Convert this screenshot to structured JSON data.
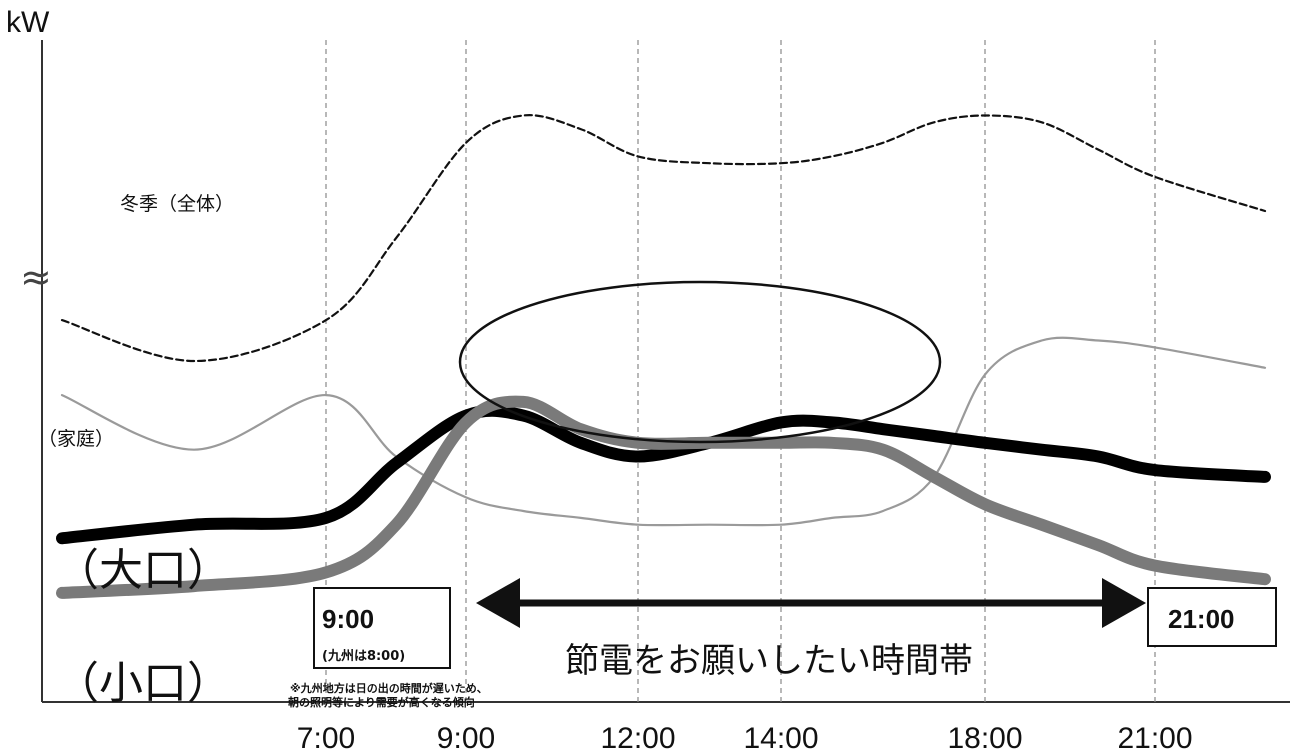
{
  "chart_data": {
    "type": "line",
    "ylabel": "kW",
    "x_ticks": [
      "7:00",
      "9:00",
      "12:00",
      "14:00",
      "18:00",
      "21:00"
    ],
    "grid": "vertical dashed lines at tick times",
    "axis_break_symbol": "≈",
    "series": [
      {
        "name": "冬季（全体）",
        "style": "dashed",
        "color": "#111111",
        "x": [
          5,
          6,
          7,
          8,
          9,
          10,
          11,
          12,
          13,
          14,
          15,
          16,
          17,
          18,
          19,
          20,
          21,
          22
        ],
        "values": [
          0.56,
          0.5,
          0.56,
          0.68,
          0.82,
          0.86,
          0.84,
          0.8,
          0.79,
          0.79,
          0.8,
          0.82,
          0.85,
          0.86,
          0.85,
          0.81,
          0.77,
          0.72
        ]
      },
      {
        "name": "（家庭）",
        "style": "thin",
        "color": "#9a9a9a",
        "x": [
          5,
          6,
          7,
          8,
          9,
          10,
          11,
          12,
          13,
          14,
          15,
          16,
          17,
          18,
          19,
          20,
          21,
          22
        ],
        "values": [
          0.45,
          0.37,
          0.45,
          0.36,
          0.3,
          0.28,
          0.27,
          0.26,
          0.26,
          0.26,
          0.27,
          0.28,
          0.33,
          0.48,
          0.53,
          0.53,
          0.52,
          0.49
        ]
      },
      {
        "name": "（大口）",
        "style": "thick",
        "color": "#000000",
        "x": [
          5,
          6,
          7,
          8,
          9,
          10,
          11,
          12,
          13,
          14,
          15,
          16,
          17,
          18,
          19,
          20,
          21,
          22
        ],
        "values": [
          0.24,
          0.26,
          0.27,
          0.35,
          0.42,
          0.42,
          0.38,
          0.36,
          0.38,
          0.41,
          0.41,
          0.4,
          0.39,
          0.38,
          0.37,
          0.36,
          0.34,
          0.33
        ]
      },
      {
        "name": "（小口）",
        "style": "thick",
        "color": "#7a7a7a",
        "x": [
          5,
          6,
          7,
          8,
          9,
          10,
          11,
          12,
          13,
          14,
          15,
          16,
          17,
          18,
          19,
          20,
          21,
          22
        ],
        "values": [
          0.16,
          0.17,
          0.19,
          0.26,
          0.41,
          0.44,
          0.4,
          0.38,
          0.38,
          0.38,
          0.38,
          0.37,
          0.33,
          0.29,
          0.26,
          0.23,
          0.2,
          0.18
        ]
      }
    ],
    "annotations": {
      "highlight": "ellipse around 9:00–15:00 peak",
      "start_box_time": "9:00",
      "start_box_note": "(九州は8:00)",
      "end_box_time": "21:00",
      "arrow_label": "節電をお願いしたい時間帯",
      "footnote_line1": "※九州地方は日の出の時間が遅いため、",
      "footnote_line2": "朝の照明等により需要が高くなる傾向"
    }
  }
}
